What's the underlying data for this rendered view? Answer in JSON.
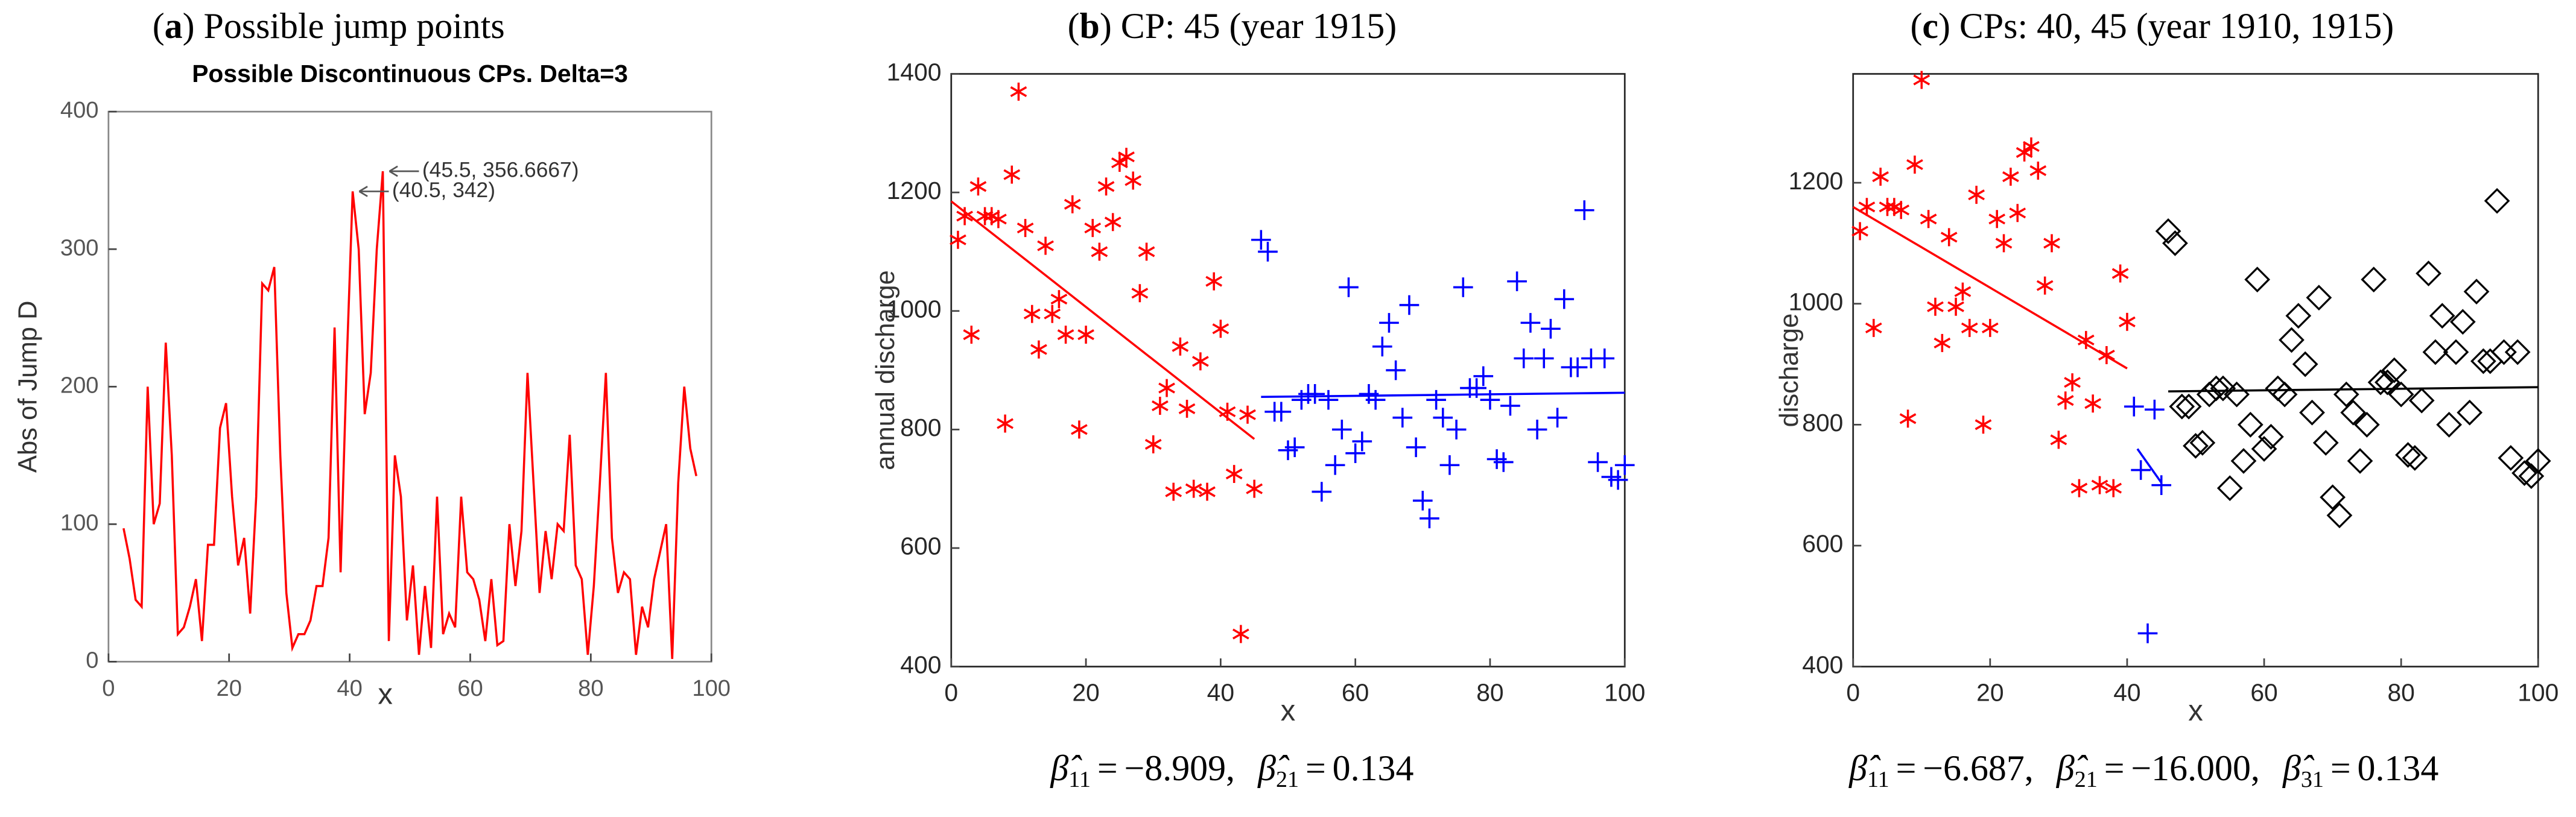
{
  "chart_data": [
    {
      "type": "line",
      "caption": [
        "(",
        "a",
        ") Possible jump points"
      ],
      "title": "Possible Discontinuous CPs. Delta=3",
      "ylabel": "Abs of Jump D",
      "xlabel": "x",
      "color": "#ff0000",
      "x": [
        2.5,
        3.5,
        4.5,
        5.5,
        6.5,
        7.5,
        8.5,
        9.5,
        10.5,
        11.5,
        12.5,
        13.5,
        14.5,
        15.5,
        16.5,
        17.5,
        18.5,
        19.5,
        20.5,
        21.5,
        22.5,
        23.5,
        24.5,
        25.5,
        26.5,
        27.5,
        28.5,
        29.5,
        30.5,
        31.5,
        32.5,
        33.5,
        34.5,
        35.5,
        36.5,
        37.5,
        38.5,
        39.5,
        40.5,
        41.5,
        42.5,
        43.5,
        44.5,
        45.5,
        46.5,
        47.5,
        48.5,
        49.5,
        50.5,
        51.5,
        52.5,
        53.5,
        54.5,
        55.5,
        56.5,
        57.5,
        58.5,
        59.5,
        60.5,
        61.5,
        62.5,
        63.5,
        64.5,
        65.5,
        66.5,
        67.5,
        68.5,
        69.5,
        70.5,
        71.5,
        72.5,
        73.5,
        74.5,
        75.5,
        76.5,
        77.5,
        78.5,
        79.5,
        80.5,
        81.5,
        82.5,
        83.5,
        84.5,
        85.5,
        86.5,
        87.5,
        88.5,
        89.5,
        90.5,
        91.5,
        92.5,
        93.5,
        94.5,
        95.5,
        96.5,
        97.5
      ],
      "values": [
        97,
        75,
        45,
        40,
        200,
        100,
        115,
        232,
        150,
        20,
        25,
        40,
        60,
        15,
        85,
        85,
        170,
        188,
        120,
        70,
        90,
        35,
        120,
        275,
        270,
        287,
        150,
        50,
        10,
        20,
        20,
        30,
        55,
        55,
        90,
        243,
        65,
        215,
        342,
        300,
        180,
        210,
        300,
        356.6667,
        15,
        150,
        120,
        30,
        70,
        5,
        55,
        10,
        120,
        20,
        35,
        25,
        120,
        65,
        60,
        45,
        15,
        60,
        12,
        15,
        100,
        55,
        95,
        210,
        130,
        50,
        95,
        60,
        100,
        95,
        165,
        70,
        60,
        5,
        55,
        130,
        210,
        90,
        50,
        65,
        60,
        5,
        40,
        25,
        60,
        80,
        100,
        2,
        130,
        200,
        155,
        135
      ],
      "annotations": [
        {
          "text": "(45.5, 356.6667)",
          "x": 45.5,
          "y": 356.6667
        },
        {
          "text": "(40.5, 342)",
          "x": 40.5,
          "y": 342
        }
      ],
      "xlim": [
        0,
        100
      ],
      "xticks": [
        0,
        20,
        40,
        60,
        80,
        100
      ],
      "ylim": [
        0,
        400
      ],
      "yticks": [
        0,
        100,
        200,
        300,
        400
      ]
    },
    {
      "type": "scatter",
      "caption": [
        "(",
        "b",
        ") CP: 45 (year 1915)"
      ],
      "ylabel": "annual discharge",
      "xlabel": "x",
      "series": [
        {
          "color": "#ff0000",
          "marker": "star",
          "x": [
            1,
            2,
            3,
            4,
            5,
            6,
            7,
            8,
            9,
            10,
            11,
            12,
            13,
            14,
            15,
            16,
            17,
            18,
            19,
            20,
            21,
            22,
            23,
            24,
            25,
            26,
            27,
            28,
            29,
            30,
            31,
            32,
            33,
            34,
            35,
            36,
            37,
            38,
            39,
            40,
            41,
            42,
            43,
            44,
            45
          ],
          "values": [
            1120,
            1160,
            960,
            1210,
            1160,
            1160,
            1155,
            810,
            1230,
            1370,
            1140,
            995,
            935,
            1110,
            995,
            1020,
            960,
            1180,
            800,
            960,
            1140,
            1100,
            1210,
            1150,
            1250,
            1260,
            1220,
            1030,
            1100,
            775,
            840,
            870,
            695,
            940,
            835,
            700,
            915,
            695,
            1050,
            970,
            830,
            725,
            455,
            825,
            700
          ]
        },
        {
          "color": "#0000ff",
          "marker": "plus",
          "x": [
            46,
            47,
            48,
            49,
            50,
            51,
            52,
            53,
            54,
            55,
            56,
            57,
            58,
            59,
            60,
            61,
            62,
            63,
            64,
            65,
            66,
            67,
            68,
            69,
            70,
            71,
            72,
            73,
            74,
            75,
            76,
            77,
            78,
            79,
            80,
            81,
            82,
            83,
            84,
            85,
            86,
            87,
            88,
            89,
            90,
            91,
            92,
            93,
            94,
            95,
            96,
            97,
            98,
            99,
            100
          ],
          "values": [
            1120,
            1100,
            830,
            830,
            765,
            770,
            850,
            860,
            860,
            695,
            850,
            740,
            800,
            1040,
            760,
            780,
            860,
            850,
            940,
            980,
            900,
            820,
            1010,
            770,
            680,
            650,
            850,
            820,
            740,
            800,
            1040,
            870,
            870,
            890,
            850,
            750,
            745,
            840,
            1050,
            920,
            980,
            800,
            920,
            970,
            820,
            1020,
            905,
            905,
            1170,
            920,
            745,
            920,
            720,
            715,
            740
          ]
        }
      ],
      "fits": [
        {
          "color": "#ff0000",
          "x": [
            0,
            45
          ],
          "values": [
            1185,
            784
          ]
        },
        {
          "color": "#0000ff",
          "x": [
            46,
            100
          ],
          "values": [
            855,
            862
          ]
        }
      ],
      "estimates": [
        {
          "symbol": "β̂",
          "subscript": "11",
          "value": -8.909,
          "label": "−8.909"
        },
        {
          "symbol": "β̂",
          "subscript": "21",
          "value": 0.134
        }
      ],
      "operator": "=",
      "separator": ",",
      "xlim": [
        0,
        100
      ],
      "xticks": [
        0,
        20,
        40,
        60,
        80,
        100
      ],
      "ylim": [
        400,
        1400
      ],
      "yticks": [
        400,
        600,
        800,
        1000,
        1200,
        1400
      ]
    },
    {
      "type": "scatter",
      "caption": [
        "(",
        "c",
        ") CPs: 40, 45 (year 1910, 1915)"
      ],
      "ylabel": "discharge",
      "xlabel": "x",
      "series": [
        {
          "color": "#ff0000",
          "marker": "star",
          "x": [
            1,
            2,
            3,
            4,
            5,
            6,
            7,
            8,
            9,
            10,
            11,
            12,
            13,
            14,
            15,
            16,
            17,
            18,
            19,
            20,
            21,
            22,
            23,
            24,
            25,
            26,
            27,
            28,
            29,
            30,
            31,
            32,
            33,
            34,
            35,
            36,
            37,
            38,
            39,
            40
          ],
          "values": [
            1120,
            1160,
            960,
            1210,
            1160,
            1160,
            1155,
            810,
            1230,
            1370,
            1140,
            995,
            935,
            1110,
            995,
            1020,
            960,
            1180,
            800,
            960,
            1140,
            1100,
            1210,
            1150,
            1250,
            1260,
            1220,
            1030,
            1100,
            775,
            840,
            870,
            695,
            940,
            835,
            700,
            915,
            695,
            1050,
            970
          ]
        },
        {
          "color": "#0000ff",
          "marker": "plus",
          "x": [
            41,
            42,
            43,
            44,
            45
          ],
          "values": [
            830,
            725,
            455,
            825,
            700
          ]
        },
        {
          "color": "#000000",
          "marker": "diamond",
          "x": [
            46,
            47,
            48,
            49,
            50,
            51,
            52,
            53,
            54,
            55,
            56,
            57,
            58,
            59,
            60,
            61,
            62,
            63,
            64,
            65,
            66,
            67,
            68,
            69,
            70,
            71,
            72,
            73,
            74,
            75,
            76,
            77,
            78,
            79,
            80,
            81,
            82,
            83,
            84,
            85,
            86,
            87,
            88,
            89,
            90,
            91,
            92,
            93,
            94,
            95,
            96,
            97,
            98,
            99,
            100
          ],
          "values": [
            1120,
            1100,
            830,
            830,
            765,
            770,
            850,
            860,
            860,
            695,
            850,
            740,
            800,
            1040,
            760,
            780,
            860,
            850,
            940,
            980,
            900,
            820,
            1010,
            770,
            680,
            650,
            850,
            820,
            740,
            800,
            1040,
            870,
            870,
            890,
            850,
            750,
            745,
            840,
            1050,
            920,
            980,
            800,
            920,
            970,
            820,
            1020,
            905,
            905,
            1170,
            920,
            745,
            920,
            720,
            715,
            740
          ]
        }
      ],
      "fits": [
        {
          "color": "#ff0000",
          "x": [
            0,
            40
          ],
          "values": [
            1160,
            893
          ]
        },
        {
          "color": "#0000ff",
          "x": [
            41.5,
            45
          ],
          "values": [
            760,
            704
          ]
        },
        {
          "color": "#000000",
          "x": [
            46,
            100
          ],
          "values": [
            855,
            862
          ]
        }
      ],
      "estimates": [
        {
          "symbol": "β̂",
          "subscript": "11",
          "value": -6.687,
          "label": "−6.687"
        },
        {
          "symbol": "β̂",
          "subscript": "21",
          "value": -16.0,
          "label": "−16.000"
        },
        {
          "symbol": "β̂",
          "subscript": "31",
          "value": 0.134
        }
      ],
      "operator": "=",
      "separator": ",",
      "xlim": [
        0,
        100
      ],
      "xticks": [
        0,
        20,
        40,
        60,
        80,
        100
      ],
      "ylim": [
        400,
        1380
      ],
      "yticks": [
        400,
        600,
        800,
        1000,
        1200
      ]
    }
  ]
}
